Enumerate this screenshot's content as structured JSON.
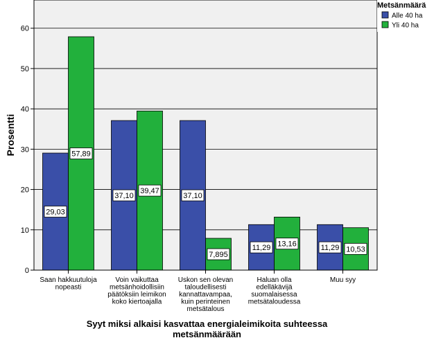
{
  "chart_data": {
    "type": "bar",
    "categories": [
      [
        "Saan hakkuutuloja",
        "nopeasti"
      ],
      [
        "Voin vaikuttaa",
        "metsänhoidollisiin",
        "päätöksiin leimikon",
        "koko kiertoajalla"
      ],
      [
        "Uskon sen olevan",
        "taloudellisesti",
        "kannattavampaa,",
        "kuin perinteinen",
        "metsätalous"
      ],
      [
        "Haluan olla",
        "edelläkävijä",
        "suomalaisessa",
        "metsätaloudessa"
      ],
      [
        "Muu syy"
      ]
    ],
    "series": [
      {
        "name": "Alle 40 ha",
        "color": "#3a4fa8",
        "values": [
          29.03,
          37.1,
          37.1,
          11.29,
          11.29
        ],
        "labels": [
          "29,03",
          "37,10",
          "37,10",
          "11,29",
          "11,29"
        ]
      },
      {
        "name": "Yli 40 ha",
        "color": "#22b03c",
        "values": [
          57.89,
          39.47,
          7.895,
          13.16,
          10.53
        ],
        "labels": [
          "57,89",
          "39,47",
          "7,895",
          "13,16",
          "10,53"
        ]
      }
    ],
    "xlabel": [
      "Syyt miksi alkaisi kasvattaa energialeimikoita suhteessa",
      "metsänmäärään"
    ],
    "ylabel": "Prosentti",
    "ylim": [
      0,
      67
    ],
    "yticks": [
      0,
      10,
      20,
      30,
      40,
      50,
      60
    ],
    "legend_title": "Metsänmäärä",
    "legend_position": "top-right",
    "grid": true
  }
}
